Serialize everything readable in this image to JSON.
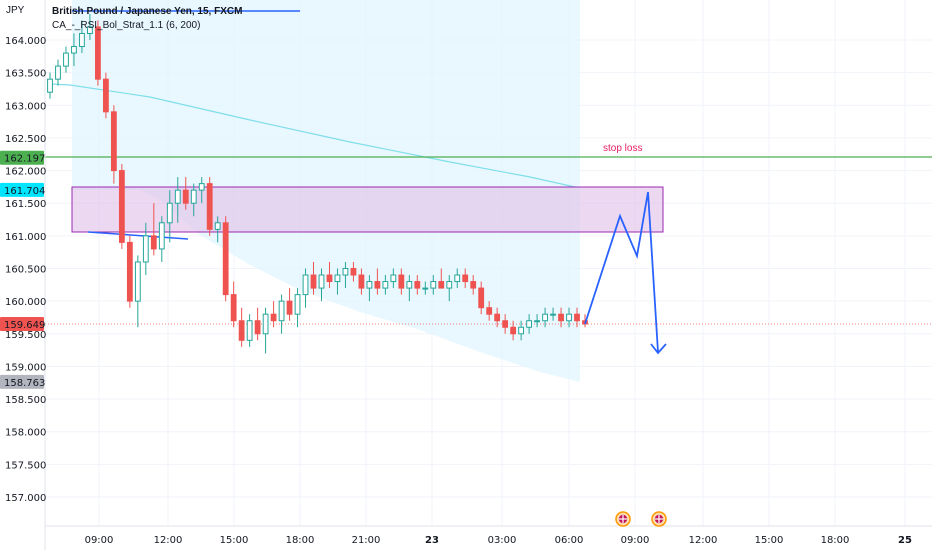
{
  "header": {
    "currency": "JPY",
    "symbol_line": "British Pound / Japanese Yen, 15, FXCM",
    "indicator_line": "CA_-_RSI_Bol_Strat_1.1 (6, 200)"
  },
  "annotations": {
    "stop_loss_label": "stop loss"
  },
  "price_badges": [
    {
      "id": "stop-level",
      "text": "162.197",
      "value": 162.197,
      "color": "#4caf50"
    },
    {
      "id": "box-top",
      "text": "161.704",
      "value": 161.704,
      "color": "#00e5ff"
    },
    {
      "id": "current",
      "text": "159.649",
      "value": 159.649,
      "color": "#ef5350"
    },
    {
      "id": "low-level",
      "text": "158.763",
      "value": 158.763,
      "color": "#b2b5be"
    }
  ],
  "colors": {
    "up": "#26a69a",
    "down": "#ef5350",
    "stop_line": "#4caf50",
    "projection": "#2962ff",
    "box_fill": "#e1bee7",
    "box_border": "#9c27b0",
    "band_fill": "#e1f5fe",
    "ma_line": "#80deea"
  },
  "chart_data": {
    "type": "candlestick",
    "symbol": "British Pound / Japanese Yen, 15, FXCM",
    "ylim": [
      156.7,
      164.55
    ],
    "y_ticks": [
      "157.000",
      "157.500",
      "158.000",
      "158.500",
      "159.000",
      "159.500",
      "160.000",
      "160.500",
      "161.000",
      "161.500",
      "162.000",
      "162.500",
      "163.000",
      "163.500",
      "164.000"
    ],
    "x_ticks": [
      "09:00",
      "12:00",
      "15:00",
      "18:00",
      "21:00",
      "23",
      "03:00",
      "06:00",
      "09:00",
      "12:00",
      "15:00",
      "18:00",
      "25"
    ],
    "stop_loss": 162.197,
    "box": {
      "top": 161.704,
      "bottom": 161.06
    },
    "current_price": 159.649,
    "candles": [
      [
        163.2,
        163.5,
        163.1,
        163.4
      ],
      [
        163.4,
        163.7,
        163.3,
        163.6
      ],
      [
        163.6,
        163.9,
        163.5,
        163.8
      ],
      [
        163.8,
        164.1,
        163.6,
        163.9
      ],
      [
        163.9,
        164.3,
        163.8,
        164.1
      ],
      [
        164.1,
        164.4,
        164.0,
        164.2
      ],
      [
        164.2,
        164.3,
        163.3,
        163.4
      ],
      [
        163.4,
        163.5,
        162.8,
        162.9
      ],
      [
        162.9,
        163.0,
        161.8,
        162.0
      ],
      [
        162.0,
        162.1,
        160.8,
        160.9
      ],
      [
        160.9,
        161.0,
        159.9,
        160.0
      ],
      [
        160.0,
        160.7,
        159.6,
        160.6
      ],
      [
        160.6,
        161.2,
        160.4,
        161.0
      ],
      [
        161.0,
        161.5,
        160.7,
        160.8
      ],
      [
        160.8,
        161.3,
        160.6,
        161.2
      ],
      [
        161.2,
        161.7,
        160.9,
        161.5
      ],
      [
        161.5,
        161.9,
        161.2,
        161.7
      ],
      [
        161.7,
        161.9,
        161.4,
        161.5
      ],
      [
        161.5,
        161.8,
        161.3,
        161.7
      ],
      [
        161.7,
        161.9,
        161.5,
        161.8
      ],
      [
        161.8,
        161.9,
        161.0,
        161.1
      ],
      [
        161.1,
        161.3,
        160.9,
        161.2
      ],
      [
        161.2,
        161.3,
        160.0,
        160.1
      ],
      [
        160.1,
        160.3,
        159.6,
        159.7
      ],
      [
        159.7,
        159.9,
        159.3,
        159.4
      ],
      [
        159.4,
        159.8,
        159.3,
        159.7
      ],
      [
        159.7,
        159.9,
        159.4,
        159.5
      ],
      [
        159.5,
        159.9,
        159.2,
        159.8
      ],
      [
        159.8,
        160.0,
        159.6,
        159.7
      ],
      [
        159.7,
        160.1,
        159.5,
        160.0
      ],
      [
        160.0,
        160.2,
        159.7,
        159.8
      ],
      [
        159.8,
        160.2,
        159.6,
        160.1
      ],
      [
        160.1,
        160.5,
        159.9,
        160.4
      ],
      [
        160.4,
        160.6,
        160.1,
        160.2
      ],
      [
        160.2,
        160.5,
        160.0,
        160.4
      ],
      [
        160.4,
        160.6,
        160.2,
        160.3
      ],
      [
        160.3,
        160.5,
        160.1,
        160.4
      ],
      [
        160.4,
        160.6,
        160.2,
        160.5
      ],
      [
        160.5,
        160.6,
        160.3,
        160.4
      ],
      [
        160.4,
        160.5,
        160.1,
        160.2
      ],
      [
        160.2,
        160.4,
        160.0,
        160.3
      ],
      [
        160.3,
        160.5,
        160.1,
        160.2
      ],
      [
        160.2,
        160.4,
        160.1,
        160.3
      ],
      [
        160.3,
        160.5,
        160.2,
        160.4
      ],
      [
        160.4,
        160.5,
        160.1,
        160.2
      ],
      [
        160.2,
        160.4,
        160.0,
        160.3
      ],
      [
        160.3,
        160.4,
        160.1,
        160.2
      ],
      [
        160.2,
        160.3,
        160.1,
        160.2
      ],
      [
        160.2,
        160.4,
        160.1,
        160.3
      ],
      [
        160.3,
        160.5,
        160.2,
        160.2
      ],
      [
        160.2,
        160.4,
        160.0,
        160.3
      ],
      [
        160.3,
        160.5,
        160.2,
        160.4
      ],
      [
        160.4,
        160.5,
        160.2,
        160.3
      ],
      [
        160.3,
        160.4,
        160.1,
        160.2
      ],
      [
        160.2,
        160.3,
        159.8,
        159.9
      ],
      [
        159.9,
        160.0,
        159.7,
        159.8
      ],
      [
        159.8,
        159.9,
        159.6,
        159.7
      ],
      [
        159.7,
        159.8,
        159.5,
        159.6
      ],
      [
        159.6,
        159.7,
        159.4,
        159.5
      ],
      [
        159.5,
        159.7,
        159.4,
        159.6
      ],
      [
        159.6,
        159.8,
        159.5,
        159.7
      ],
      [
        159.7,
        159.8,
        159.6,
        159.7
      ],
      [
        159.7,
        159.9,
        159.6,
        159.8
      ],
      [
        159.8,
        159.9,
        159.7,
        159.8
      ],
      [
        159.8,
        159.9,
        159.6,
        159.7
      ],
      [
        159.7,
        159.9,
        159.6,
        159.8
      ],
      [
        159.8,
        159.9,
        159.6,
        159.7
      ],
      [
        159.7,
        159.8,
        159.6,
        159.65
      ]
    ],
    "projection_path": [
      [
        159.7,
        159.649
      ],
      [
        161.3,
        161.3
      ],
      [
        160.7,
        160.7
      ],
      [
        161.7,
        161.7
      ],
      [
        159.1,
        159.1
      ]
    ]
  }
}
